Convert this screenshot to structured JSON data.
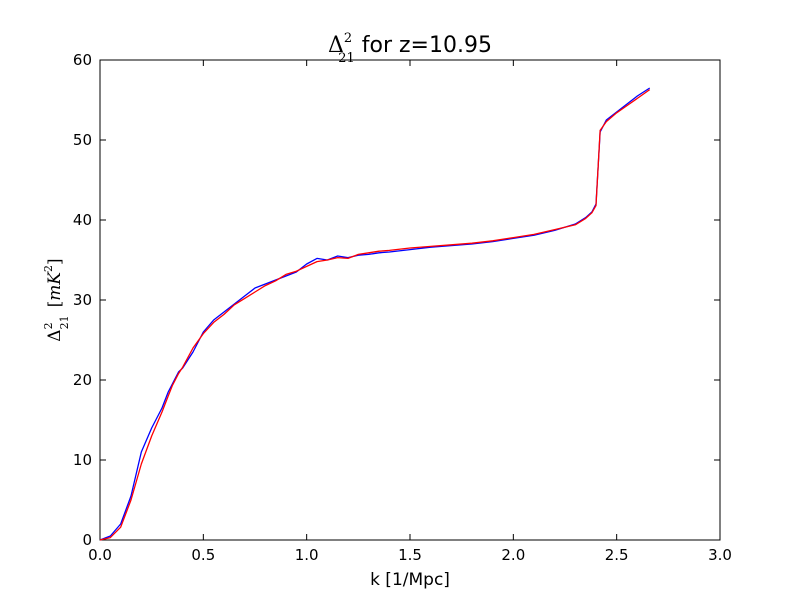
{
  "chart_data": {
    "type": "line",
    "title_parts": {
      "symbol": "Δ",
      "sup": "2",
      "sub": "21",
      "rest": " for z=10.95"
    },
    "xlabel": "k [1/Mpc]",
    "ylabel_parts": {
      "symbol": "Δ",
      "sup": "2",
      "sub": "21",
      "unit_open": "[",
      "unit_m": "mK",
      "unit_sup": "2",
      "unit_close": "]"
    },
    "xlim": [
      0,
      3.0
    ],
    "ylim": [
      0,
      60
    ],
    "xticks": [
      "0.0",
      "0.5",
      "1.0",
      "1.5",
      "2.0",
      "2.5",
      "3.0"
    ],
    "yticks": [
      "0",
      "10",
      "20",
      "30",
      "40",
      "50",
      "60"
    ],
    "grid": false,
    "series": [
      {
        "color": "#0000ff",
        "x": [
          0.0,
          0.05,
          0.1,
          0.15,
          0.2,
          0.25,
          0.3,
          0.33,
          0.35,
          0.38,
          0.4,
          0.45,
          0.5,
          0.55,
          0.6,
          0.65,
          0.7,
          0.75,
          0.8,
          0.85,
          0.9,
          0.95,
          1.0,
          1.05,
          1.1,
          1.15,
          1.2,
          1.25,
          1.3,
          1.35,
          1.4,
          1.5,
          1.6,
          1.7,
          1.8,
          1.9,
          2.0,
          2.1,
          2.2,
          2.3,
          2.35,
          2.38,
          2.4,
          2.42,
          2.45,
          2.5,
          2.55,
          2.6,
          2.66
        ],
        "y": [
          0.0,
          0.5,
          2.0,
          5.5,
          11.0,
          14.0,
          16.5,
          18.5,
          19.5,
          21.0,
          21.5,
          23.5,
          26.0,
          27.5,
          28.5,
          29.5,
          30.5,
          31.5,
          32.0,
          32.5,
          33.0,
          33.5,
          34.5,
          35.2,
          35.0,
          35.5,
          35.3,
          35.6,
          35.7,
          35.9,
          36.0,
          36.3,
          36.6,
          36.8,
          37.0,
          37.3,
          37.7,
          38.1,
          38.7,
          39.5,
          40.3,
          41.0,
          42.0,
          51.0,
          52.5,
          53.5,
          54.5,
          55.5,
          56.5
        ]
      },
      {
        "color": "#ff0000",
        "x": [
          0.0,
          0.05,
          0.1,
          0.15,
          0.2,
          0.25,
          0.3,
          0.33,
          0.35,
          0.38,
          0.4,
          0.45,
          0.5,
          0.55,
          0.6,
          0.65,
          0.7,
          0.75,
          0.8,
          0.85,
          0.9,
          0.95,
          1.0,
          1.05,
          1.1,
          1.15,
          1.2,
          1.25,
          1.3,
          1.35,
          1.4,
          1.5,
          1.6,
          1.7,
          1.8,
          1.9,
          2.0,
          2.1,
          2.2,
          2.3,
          2.35,
          2.38,
          2.4,
          2.42,
          2.45,
          2.5,
          2.55,
          2.6,
          2.66
        ],
        "y": [
          0.0,
          0.3,
          1.6,
          5.0,
          9.5,
          13.0,
          16.0,
          18.0,
          19.3,
          20.8,
          21.6,
          24.0,
          25.8,
          27.2,
          28.2,
          29.4,
          30.2,
          31.0,
          31.8,
          32.4,
          33.2,
          33.6,
          34.2,
          34.8,
          35.0,
          35.3,
          35.2,
          35.7,
          35.9,
          36.1,
          36.2,
          36.5,
          36.7,
          36.9,
          37.1,
          37.4,
          37.8,
          38.2,
          38.8,
          39.4,
          40.2,
          40.9,
          41.8,
          51.2,
          52.3,
          53.4,
          54.3,
          55.2,
          56.3
        ]
      }
    ]
  }
}
